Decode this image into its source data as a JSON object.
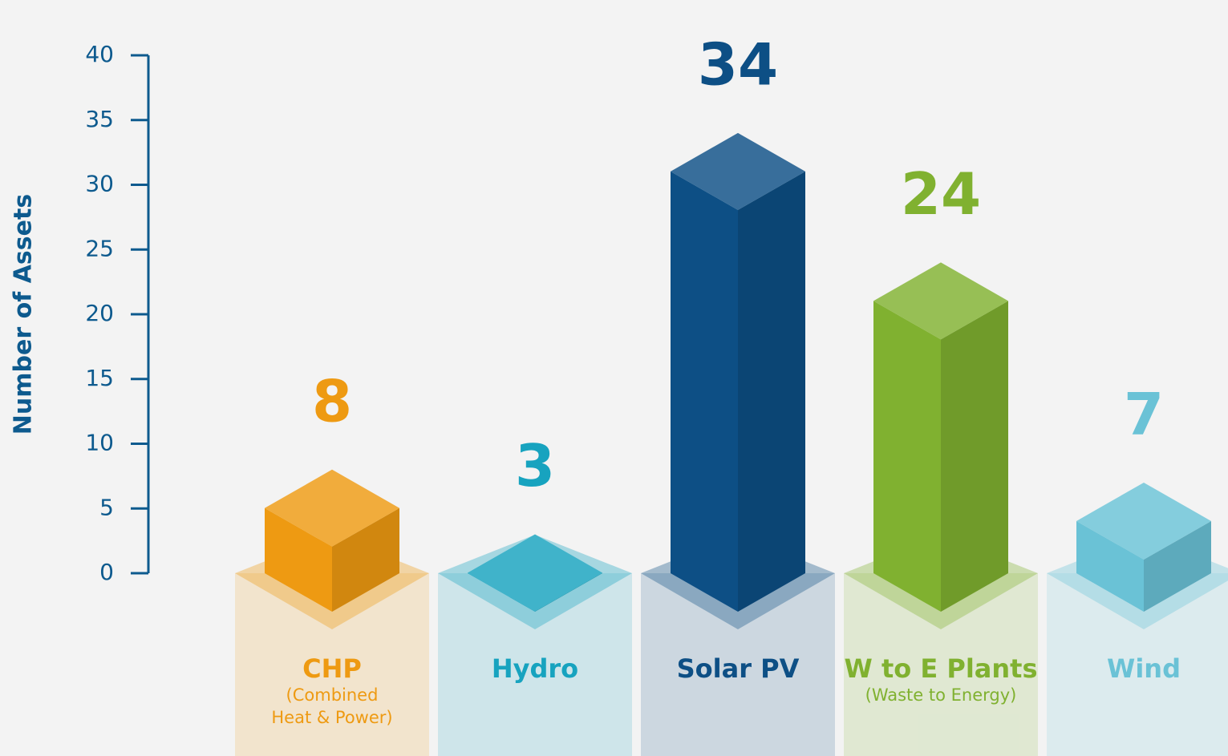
{
  "chart_data": {
    "type": "bar",
    "y_axis_label": "Number of Assets",
    "categories": [
      "CHP",
      "Hydro",
      "Solar PV",
      "W to E Plants",
      "Wind"
    ],
    "category_notes": [
      [
        "(Combined",
        "Heat & Power)"
      ],
      [],
      [],
      [
        "(Waste to Energy)"
      ],
      []
    ],
    "values": [
      8,
      3,
      34,
      24,
      7
    ],
    "colors": [
      "#ee9a12",
      "#17a3bf",
      "#0d4f85",
      "#80b130",
      "#6ac2d6"
    ],
    "ylim": [
      0,
      40
    ],
    "yticks": [
      0,
      5,
      10,
      15,
      20,
      25,
      30,
      35,
      40
    ]
  }
}
